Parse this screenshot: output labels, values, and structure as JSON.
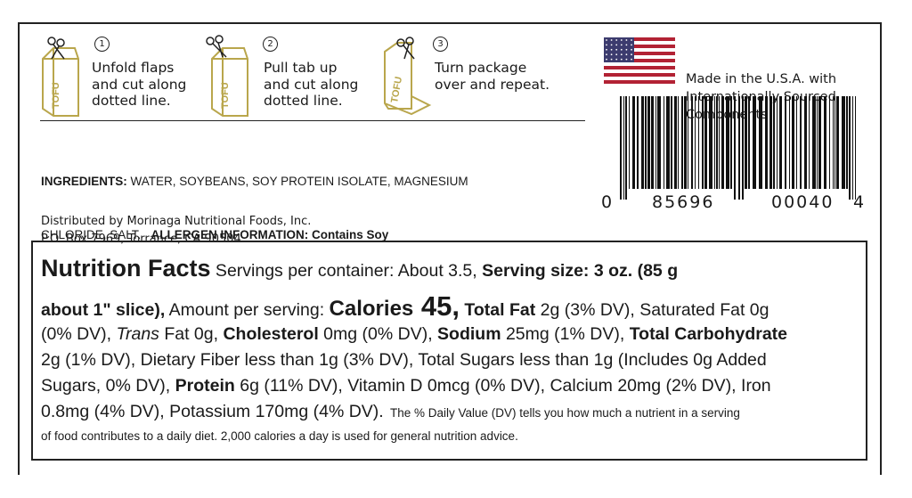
{
  "steps": [
    {
      "number": "1",
      "lines": [
        "Unfold flaps",
        "and cut along",
        "dotted line."
      ]
    },
    {
      "number": "2",
      "lines": [
        "Pull tab up",
        "and cut along",
        "dotted line."
      ]
    },
    {
      "number": "3",
      "lines": [
        "Turn package",
        "over and repeat."
      ]
    }
  ],
  "icon_text": "TOFU",
  "ingredients": {
    "label": "INGREDIENTS:",
    "line1": "WATER, SOYBEANS, SOY PROTEIN ISOLATE, MAGNESIUM",
    "line2": "CHLORIDE, SALT.",
    "allergen_label": "ALLERGEN INFORMATION:",
    "allergen": "Contains Soy"
  },
  "distributor": [
    "Distributed by Morinaga Nutritional Foods, Inc.",
    "P.O. Box 7969, Torrance, CA 90504"
  ],
  "origin": [
    "Made in the U.S.A. with",
    "Internationally Sourced",
    "Components"
  ],
  "barcode_digits": [
    "0",
    "85696",
    "00040",
    "4"
  ],
  "nutrition": {
    "runs": [
      "Nutrition Facts",
      " Servings per container: About 3.5, ",
      "Serving size: 3 oz. (85 g",
      "about 1\" slice),",
      " Amount per serving: ",
      "Calories",
      " 45,",
      " Total Fat",
      " 2g (3% DV), Saturated Fat 0g",
      "(0% DV), ",
      "Trans",
      " Fat 0g, ",
      "Cholesterol",
      " 0mg (0% DV), ",
      "Sodium",
      " 25mg (1% DV), ",
      "Total Carbohydrate",
      "2g (1% DV), Dietary Fiber less than 1g (3% DV), Total Sugars less than 1g (Includes 0g Added",
      "Sugars, 0% DV), ",
      "Protein",
      " 6g (11% DV), Vitamin D 0mcg (0% DV), Calcium 20mg (2% DV), Iron",
      "0.8mg (4% DV), Potassium 170mg (4% DV).",
      "  The % Daily Value (DV) tells you how much a nutrient in a serving",
      "of food contributes to a daily diet. 2,000 calories a day is used for general nutrition advice."
    ]
  }
}
